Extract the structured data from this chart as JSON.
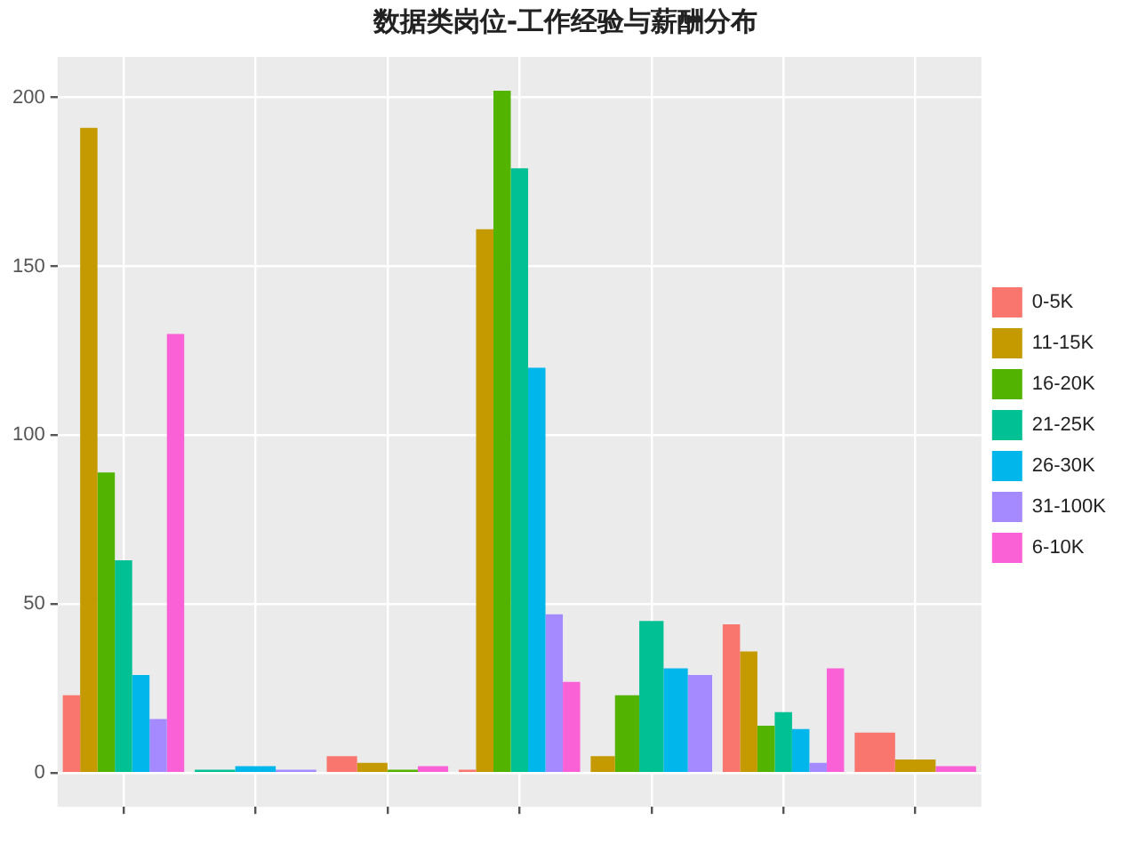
{
  "chart_data": {
    "type": "bar",
    "title": "数据类岗位-工作经验与薪酬分布",
    "categories": [
      null,
      null,
      null,
      null,
      null,
      null,
      null
    ],
    "series": [
      {
        "name": "0-5K",
        "color": "#f8766d",
        "values": [
          23,
          null,
          5,
          1,
          null,
          44,
          12
        ]
      },
      {
        "name": "11-15K",
        "color": "#c49a00",
        "values": [
          191,
          null,
          3,
          161,
          5,
          36,
          4
        ]
      },
      {
        "name": "16-20K",
        "color": "#53b400",
        "values": [
          89,
          null,
          1,
          202,
          23,
          14,
          null
        ]
      },
      {
        "name": "21-25K",
        "color": "#00c094",
        "values": [
          63,
          1,
          null,
          179,
          45,
          18,
          null
        ]
      },
      {
        "name": "26-30K",
        "color": "#00b6eb",
        "values": [
          29,
          2,
          null,
          120,
          31,
          13,
          null
        ]
      },
      {
        "name": "31-100K",
        "color": "#a58aff",
        "values": [
          16,
          1,
          null,
          47,
          29,
          3,
          null
        ]
      },
      {
        "name": "6-10K",
        "color": "#fb61d7",
        "values": [
          130,
          null,
          2,
          27,
          null,
          31,
          2
        ]
      }
    ],
    "ylim": [
      -10,
      212
    ],
    "yticks": [
      0,
      50,
      100,
      150,
      200
    ],
    "grid": true,
    "legend": "right"
  }
}
